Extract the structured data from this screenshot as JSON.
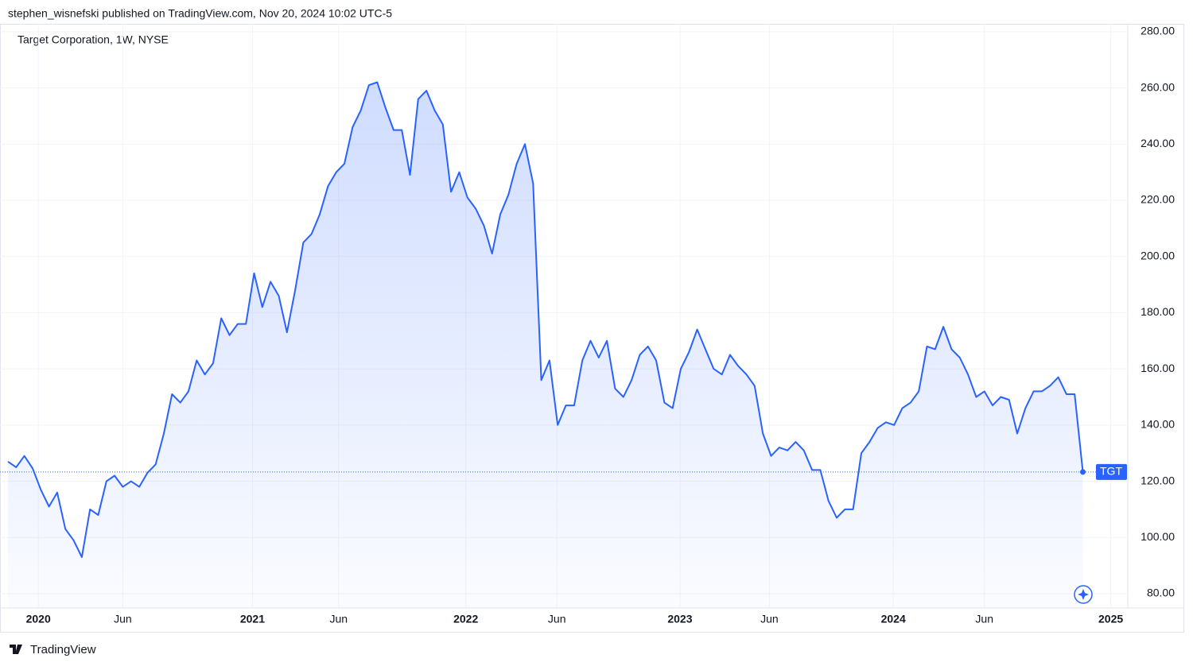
{
  "header": {
    "publisher": "stephen_wisnefski published on TradingView.com, Nov 20, 2024 10:02 UTC-5"
  },
  "footer": {
    "brand": "TradingView"
  },
  "chart_data": {
    "type": "line",
    "title": "Target Corporation, 1W, NYSE",
    "series": [
      {
        "name": "TGT",
        "color": "#2962ff",
        "values": [
          127,
          125,
          129,
          124.6,
          117,
          111,
          116,
          103,
          99,
          93,
          110,
          108,
          120,
          122,
          118,
          120,
          118,
          123,
          126,
          137,
          151,
          148,
          152,
          163,
          158,
          162,
          178,
          172,
          176,
          176,
          194,
          182,
          191,
          186,
          173,
          188,
          205,
          208,
          215,
          225,
          230,
          233,
          246,
          252,
          261,
          262,
          253,
          245,
          245,
          229,
          256,
          259,
          252,
          247,
          223,
          230,
          221,
          217,
          211,
          201,
          215,
          222,
          233,
          240,
          226,
          156,
          163,
          140,
          147,
          147,
          163,
          170,
          164,
          170,
          153,
          150,
          156,
          165,
          168,
          163,
          148,
          146,
          160,
          166,
          174,
          167,
          160,
          158,
          165,
          161,
          158,
          154,
          137,
          129,
          132,
          131,
          134,
          131,
          124,
          124,
          113,
          107,
          110,
          110,
          130,
          134,
          139,
          141,
          140,
          146,
          148,
          152,
          168,
          167,
          175,
          167,
          164,
          158,
          150,
          152,
          147,
          150,
          149,
          137,
          146,
          152,
          152,
          154,
          157,
          151,
          151,
          123.3
        ]
      }
    ],
    "xlim": [
      0,
      135.7
    ],
    "xticks": [
      {
        "value": 3.7,
        "label": "2020"
      },
      {
        "value": 14.0,
        "label": "Jun"
      },
      {
        "value": 29.8,
        "label": "2021"
      },
      {
        "value": 40.3,
        "label": "Jun"
      },
      {
        "value": 55.8,
        "label": "2022"
      },
      {
        "value": 66.9,
        "label": "Jun"
      },
      {
        "value": 81.9,
        "label": "2023"
      },
      {
        "value": 92.8,
        "label": "Jun"
      },
      {
        "value": 107.9,
        "label": "2024"
      },
      {
        "value": 119.0,
        "label": "Jun"
      },
      {
        "value": 134.4,
        "label": "2025"
      }
    ],
    "ylim": [
      74.9,
      282.8
    ],
    "yticks": [
      {
        "value": 80,
        "label": "80.00"
      },
      {
        "value": 100,
        "label": "100.00"
      },
      {
        "value": 120,
        "label": "120.00"
      },
      {
        "value": 140,
        "label": "140.00"
      },
      {
        "value": 160,
        "label": "160.00"
      },
      {
        "value": 180,
        "label": "180.00"
      },
      {
        "value": 200,
        "label": "200.00"
      },
      {
        "value": 220,
        "label": "220.00"
      },
      {
        "value": 240,
        "label": "240.00"
      },
      {
        "value": 260,
        "label": "260.00"
      },
      {
        "value": 280,
        "label": "280.00"
      }
    ],
    "grid": true,
    "area_fill": true
  }
}
